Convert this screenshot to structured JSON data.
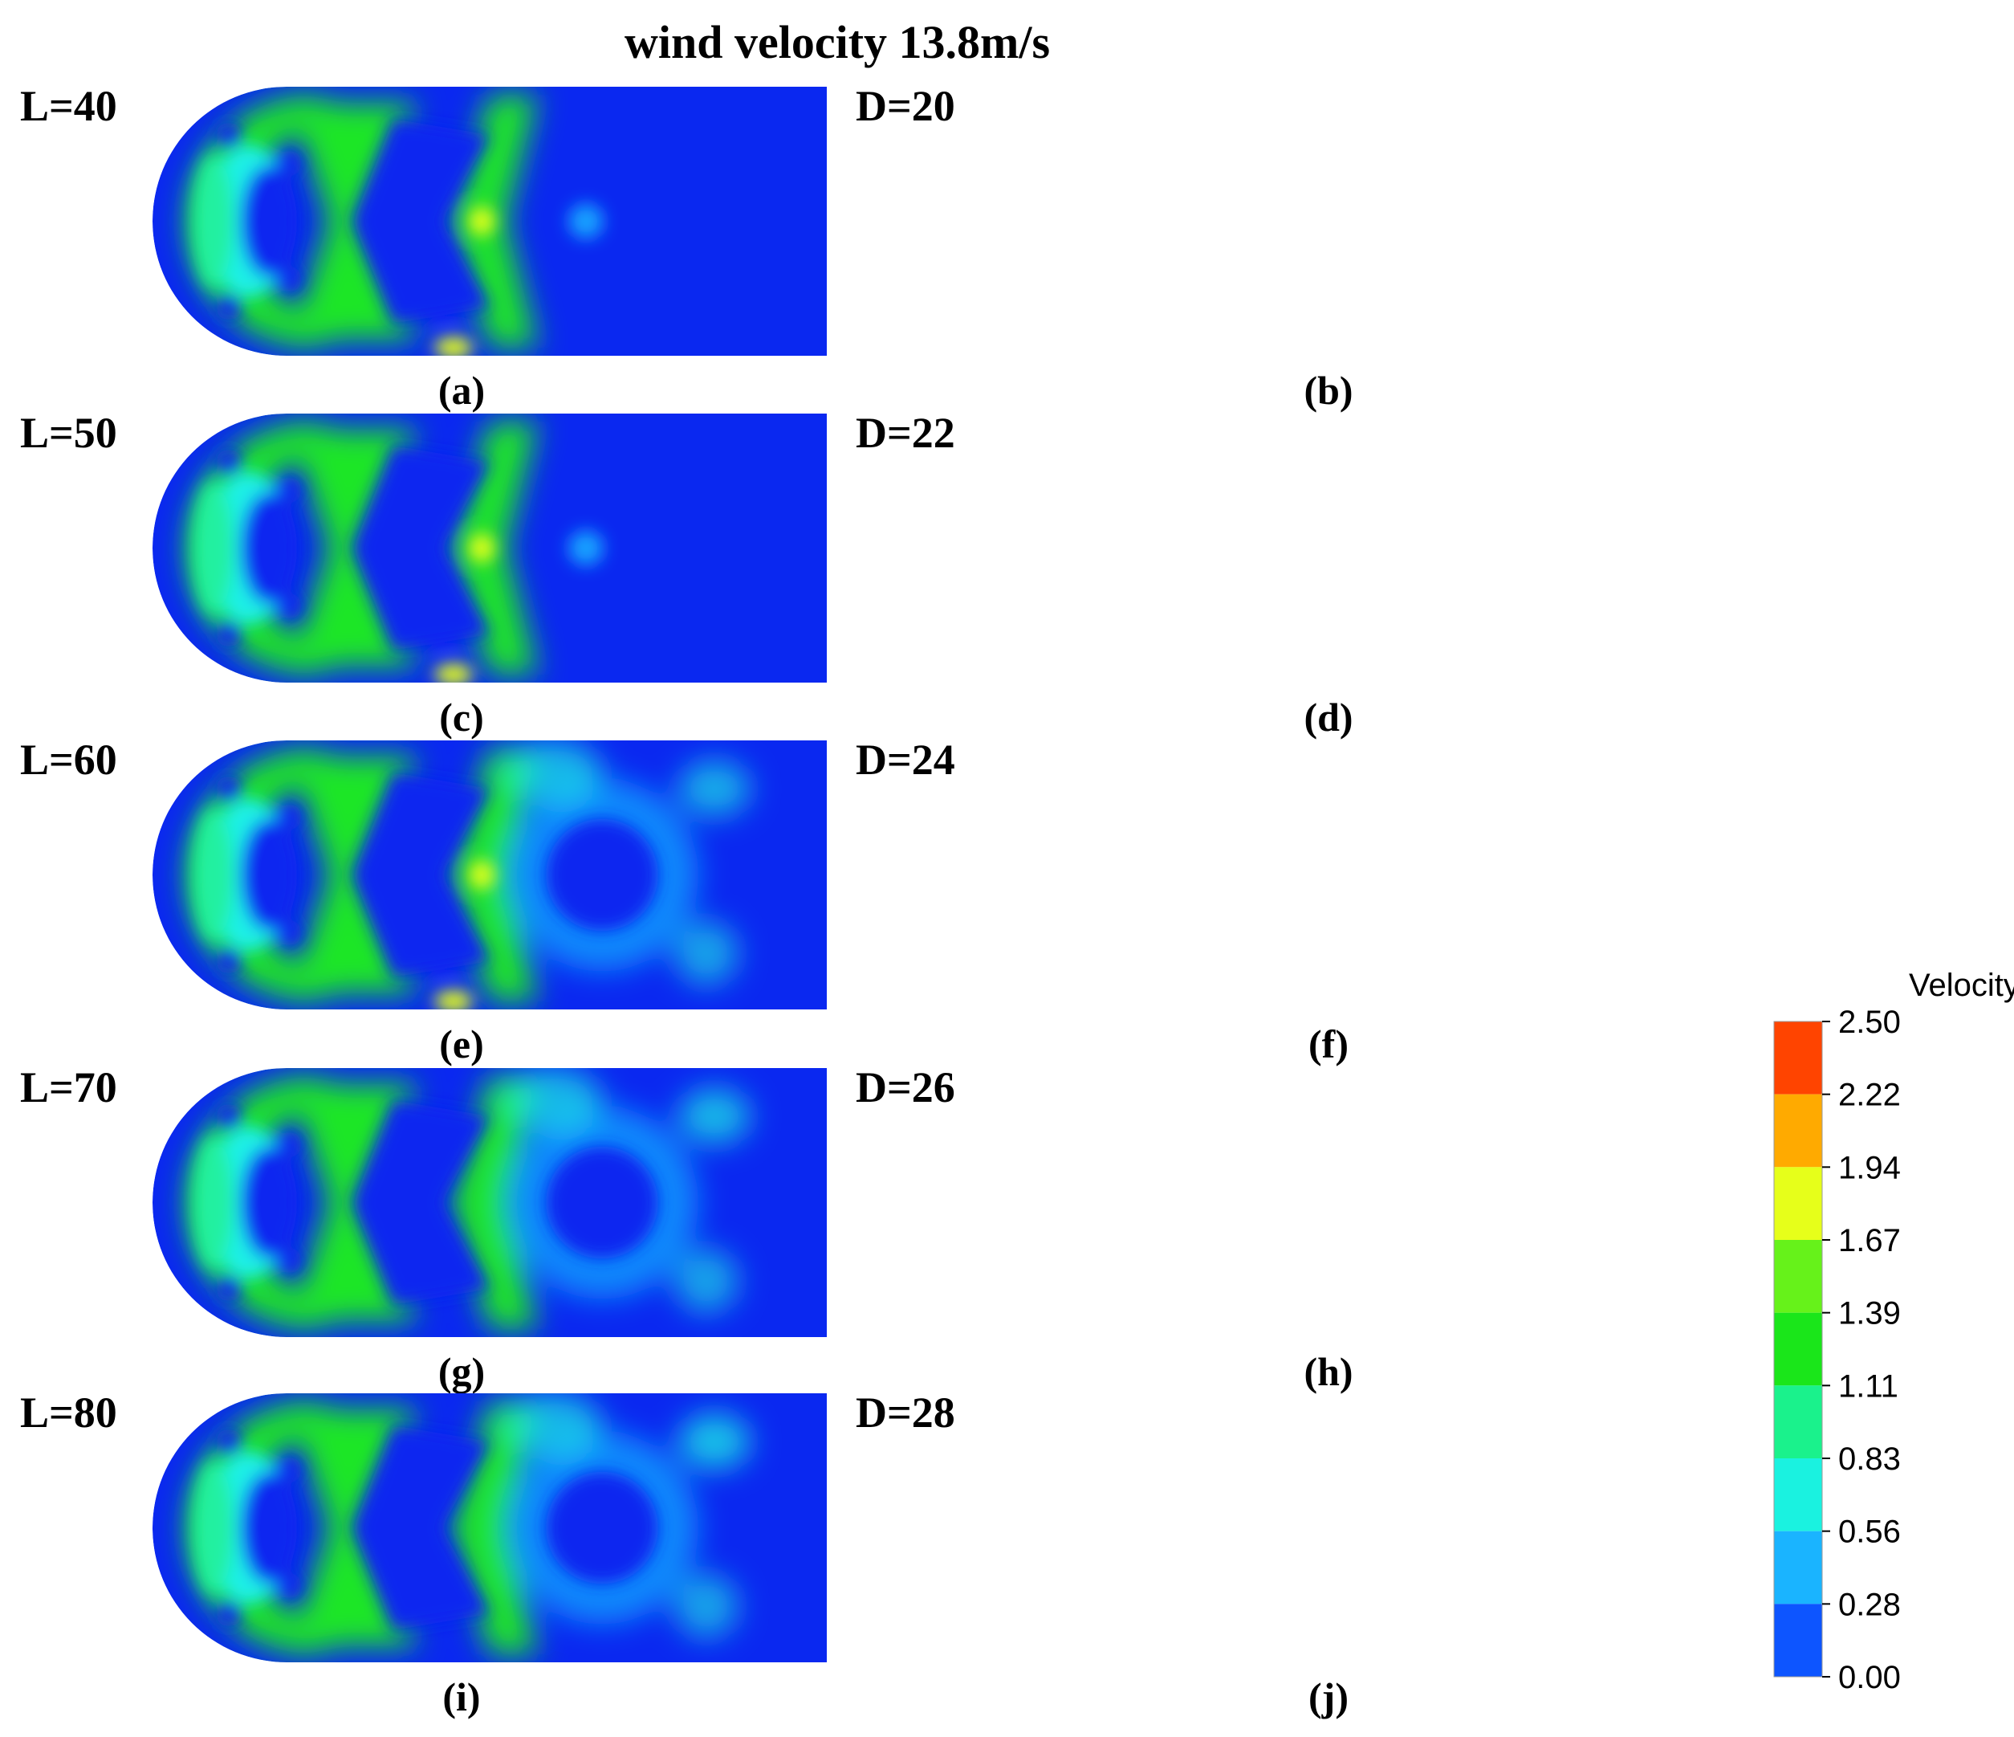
{
  "figure": {
    "title": "wind velocity 13.8m/s"
  },
  "panels": [
    {
      "id": "a",
      "param": "L=40",
      "caption": "(a)"
    },
    {
      "id": "b",
      "param": "D=20",
      "caption": "(b)"
    },
    {
      "id": "c",
      "param": "L=50",
      "caption": "(c)"
    },
    {
      "id": "d",
      "param": "D=22",
      "caption": "(d)"
    },
    {
      "id": "e",
      "param": "L=60",
      "caption": "(e)"
    },
    {
      "id": "f",
      "param": "D=24",
      "caption": "(f)"
    },
    {
      "id": "g",
      "param": "L=70",
      "caption": "(g)"
    },
    {
      "id": "h",
      "param": "D=26",
      "caption": "(h)"
    },
    {
      "id": "i",
      "param": "L=80",
      "caption": "(i)"
    },
    {
      "id": "j",
      "param": "D=28",
      "caption": "(j)"
    }
  ],
  "colorbar": {
    "title": "Velocity[m/s]",
    "ticks": [
      "2.50",
      "2.22",
      "1.94",
      "1.67",
      "1.39",
      "1.11",
      "0.83",
      "0.56",
      "0.28",
      "0.00"
    ],
    "colors": [
      "#ff4400",
      "#ffaa00",
      "#e6ff1a",
      "#66f21a",
      "#1ae61a",
      "#1af28c",
      "#1af2e0",
      "#1ab4ff",
      "#0d55ff"
    ]
  },
  "palette": {
    "low": "#0a28f0",
    "mid_low": "#14a0ff",
    "cyan": "#1ef0e6",
    "teal": "#23f0a0",
    "green": "#1ee628",
    "lime": "#78f01e",
    "yellow": "#e6ff1e",
    "orange": "#ffaa14"
  }
}
